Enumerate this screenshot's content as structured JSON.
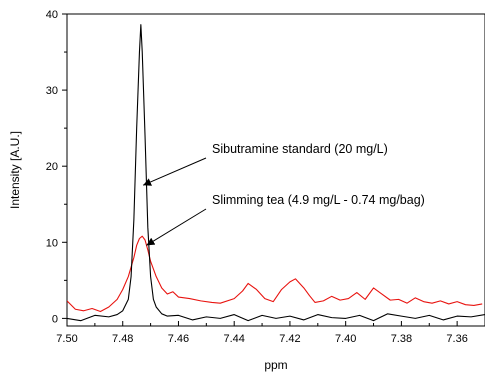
{
  "chart_data": {
    "type": "line",
    "title": "",
    "xlabel": "ppm",
    "ylabel": "Intensity [A.U.]",
    "xlim": [
      7.5,
      7.35
    ],
    "ylim": [
      -1,
      40
    ],
    "x_reversed": true,
    "x_ticks": [
      "7.50",
      "7.48",
      "7.46",
      "7.44",
      "7.42",
      "7.40",
      "7.38",
      "7.36"
    ],
    "y_ticks": [
      "0",
      "10",
      "20",
      "30",
      "40"
    ],
    "x_tick_values": [
      7.5,
      7.48,
      7.46,
      7.44,
      7.42,
      7.4,
      7.38,
      7.36
    ],
    "y_tick_values": [
      0,
      10,
      20,
      30,
      40
    ],
    "series": [
      {
        "name": "Sibutramine standard (20 mg/L)",
        "color": "#000000",
        "x": [
          7.5,
          7.495,
          7.49,
          7.485,
          7.482,
          7.48,
          7.478,
          7.477,
          7.476,
          7.475,
          7.474,
          7.4735,
          7.473,
          7.472,
          7.471,
          7.47,
          7.469,
          7.468,
          7.466,
          7.464,
          7.46,
          7.455,
          7.45,
          7.445,
          7.44,
          7.435,
          7.43,
          7.425,
          7.42,
          7.415,
          7.41,
          7.405,
          7.4,
          7.395,
          7.39,
          7.385,
          7.38,
          7.375,
          7.37,
          7.365,
          7.36,
          7.355,
          7.35
        ],
        "y": [
          0.0,
          -0.3,
          0.4,
          0.2,
          0.5,
          1.0,
          2.5,
          5.5,
          13.0,
          25.0,
          35.0,
          38.6,
          35.0,
          24.0,
          12.0,
          5.5,
          2.5,
          1.5,
          0.6,
          0.3,
          0.4,
          -0.2,
          0.2,
          0.0,
          0.5,
          -0.3,
          0.4,
          0.0,
          0.3,
          -0.2,
          0.5,
          0.1,
          0.0,
          0.4,
          -0.3,
          0.6,
          0.3,
          0.0,
          0.4,
          -0.2,
          0.3,
          0.2,
          0.5
        ]
      },
      {
        "name": "Slimming tea (4.9 mg/L - 0.74 mg/bag)",
        "color": "#e8130f",
        "x": [
          7.5,
          7.497,
          7.494,
          7.491,
          7.488,
          7.485,
          7.482,
          7.48,
          7.478,
          7.476,
          7.475,
          7.474,
          7.473,
          7.472,
          7.471,
          7.47,
          7.468,
          7.466,
          7.464,
          7.462,
          7.46,
          7.456,
          7.452,
          7.448,
          7.445,
          7.44,
          7.437,
          7.435,
          7.432,
          7.429,
          7.426,
          7.423,
          7.42,
          7.418,
          7.415,
          7.413,
          7.411,
          7.408,
          7.405,
          7.402,
          7.399,
          7.396,
          7.393,
          7.39,
          7.387,
          7.384,
          7.381,
          7.378,
          7.375,
          7.372,
          7.369,
          7.366,
          7.363,
          7.36,
          7.357,
          7.354,
          7.351
        ],
        "y": [
          2.3,
          1.2,
          1.0,
          1.3,
          0.9,
          1.5,
          2.5,
          3.8,
          5.5,
          8.0,
          9.6,
          10.5,
          10.8,
          10.3,
          9.0,
          7.5,
          5.5,
          4.0,
          3.2,
          3.5,
          2.8,
          2.6,
          2.3,
          2.1,
          2.0,
          2.6,
          3.6,
          4.6,
          3.8,
          2.6,
          2.2,
          3.8,
          4.8,
          5.2,
          4.0,
          3.0,
          2.1,
          2.3,
          2.9,
          2.4,
          2.6,
          3.4,
          2.5,
          4.0,
          3.2,
          2.4,
          2.5,
          2.0,
          2.7,
          2.2,
          2.0,
          2.3,
          1.9,
          2.2,
          1.8,
          1.7,
          1.9
        ]
      }
    ],
    "annotations": [
      {
        "text": "Sibutramine standard (20 mg/L)",
        "series": 0,
        "arrow_to": [
          7.4727,
          17.5
        ]
      },
      {
        "text": "Slimming tea (4.9 mg/L - 0.74 mg/bag)",
        "series": 1,
        "arrow_to": [
          7.4715,
          9.6
        ]
      }
    ],
    "grid": false,
    "legend": "none"
  }
}
